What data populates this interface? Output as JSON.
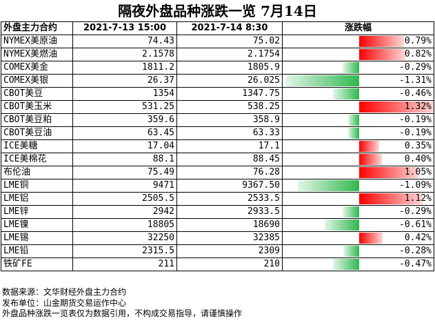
{
  "title": "隔夜外盘品种涨跌一览 7月14日",
  "headers": {
    "contract": "外盘主力合约",
    "prev": "2021-7-13 15:00",
    "curr": "2021-7-14 8:30",
    "change": "涨跌幅"
  },
  "colors": {
    "up": "#ff0000",
    "down": "#2db84d"
  },
  "rows": [
    {
      "name": "NYMEX美原油",
      "prev": "74.43",
      "curr": "75.02",
      "change": "0.79%",
      "pct": 0.79
    },
    {
      "name": "NYMEX美燃油",
      "prev": "2.1578",
      "curr": "2.1754",
      "change": "0.82%",
      "pct": 0.82
    },
    {
      "name": "COMEX美金",
      "prev": "1811.2",
      "curr": "1805.9",
      "change": "-0.29%",
      "pct": -0.29
    },
    {
      "name": "COMEX美银",
      "prev": "26.37",
      "curr": "26.025",
      "change": "-1.31%",
      "pct": -1.31
    },
    {
      "name": "CBOT美豆",
      "prev": "1354",
      "curr": "1347.75",
      "change": "-0.46%",
      "pct": -0.46
    },
    {
      "name": "CBOT美玉米",
      "prev": "531.25",
      "curr": "538.25",
      "change": "1.32%",
      "pct": 1.32
    },
    {
      "name": "CBOT美豆粕",
      "prev": "359.6",
      "curr": "358.9",
      "change": "-0.19%",
      "pct": -0.19
    },
    {
      "name": "CBOT美豆油",
      "prev": "63.45",
      "curr": "63.33",
      "change": "-0.19%",
      "pct": -0.19
    },
    {
      "name": "ICE美糖",
      "prev": "17.04",
      "curr": "17.1",
      "change": "0.35%",
      "pct": 0.35
    },
    {
      "name": "ICE美棉花",
      "prev": "88.1",
      "curr": "88.45",
      "change": "0.40%",
      "pct": 0.4
    },
    {
      "name": "布伦油",
      "prev": "75.49",
      "curr": "76.28",
      "change": "1.05%",
      "pct": 1.05
    },
    {
      "name": "LME铜",
      "prev": "9471",
      "curr": "9367.50",
      "change": "-1.09%",
      "pct": -1.09
    },
    {
      "name": "LME铝",
      "prev": "2505.5",
      "curr": "2533.5",
      "change": "1.12%",
      "pct": 1.12
    },
    {
      "name": "LME锌",
      "prev": "2942",
      "curr": "2933.5",
      "change": "-0.29%",
      "pct": -0.29
    },
    {
      "name": "LME镍",
      "prev": "18805",
      "curr": "18690",
      "change": "-0.61%",
      "pct": -0.61
    },
    {
      "name": "LME锡",
      "prev": "32250",
      "curr": "32385",
      "change": "0.42%",
      "pct": 0.42
    },
    {
      "name": "LME铅",
      "prev": "2315.5",
      "curr": "2309",
      "change": "-0.28%",
      "pct": -0.28
    },
    {
      "name": "铁矿FE",
      "prev": "211",
      "curr": "210",
      "change": "-0.47%",
      "pct": -0.47
    }
  ],
  "notes": [
    "数据来源：文华财经外盘主力合约",
    "发布单位：山金期货交易运作中心",
    "外盘品种涨跌一览表仅为数据引用，不构成交易指导，请谨慎操作"
  ]
}
